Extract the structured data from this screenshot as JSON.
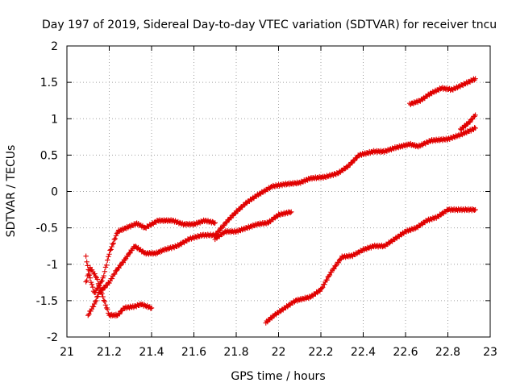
{
  "chart_data": {
    "type": "scatter",
    "title": "Day 197 of 2019, Sidereal Day-to-day VTEC variation (SDTVAR) for receiver tncu",
    "xlabel": "GPS time / hours",
    "ylabel": "SDTVAR / TECUs",
    "xlim": [
      21,
      23
    ],
    "ylim": [
      -2,
      2
    ],
    "xticks": [
      "21",
      "21.2",
      "21.4",
      "21.6",
      "21.8",
      "22",
      "22.2",
      "22.4",
      "22.6",
      "22.8",
      "23"
    ],
    "yticks": [
      "-2",
      "-1.5",
      "-1",
      "-0.5",
      "0",
      "0.5",
      "1",
      "1.5",
      "2"
    ],
    "grid": true,
    "marker": "plus",
    "marker_color": "#e00000",
    "series": [
      {
        "anchors": [
          [
            21.09,
            -1.25
          ],
          [
            21.11,
            -1.05
          ],
          [
            21.14,
            -1.18
          ],
          [
            21.17,
            -1.45
          ],
          [
            21.2,
            -1.7
          ],
          [
            21.24,
            -1.7
          ],
          [
            21.27,
            -1.6
          ],
          [
            21.32,
            -1.58
          ],
          [
            21.35,
            -1.55
          ],
          [
            21.4,
            -1.6
          ]
        ]
      },
      {
        "anchors": [
          [
            21.09,
            -0.9
          ],
          [
            21.11,
            -1.2
          ],
          [
            21.13,
            -1.4
          ],
          [
            21.17,
            -1.2
          ],
          [
            21.2,
            -0.85
          ],
          [
            21.24,
            -0.55
          ],
          [
            21.28,
            -0.5
          ],
          [
            21.33,
            -0.44
          ],
          [
            21.37,
            -0.5
          ],
          [
            21.43,
            -0.4
          ],
          [
            21.5,
            -0.4
          ],
          [
            21.55,
            -0.45
          ],
          [
            21.6,
            -0.45
          ],
          [
            21.65,
            -0.4
          ],
          [
            21.7,
            -0.43
          ]
        ]
      },
      {
        "anchors": [
          [
            21.1,
            -1.7
          ],
          [
            21.13,
            -1.55
          ],
          [
            21.15,
            -1.4
          ],
          [
            21.2,
            -1.25
          ],
          [
            21.23,
            -1.1
          ],
          [
            21.27,
            -0.95
          ],
          [
            21.32,
            -0.75
          ],
          [
            21.37,
            -0.85
          ],
          [
            21.42,
            -0.85
          ],
          [
            21.46,
            -0.8
          ],
          [
            21.52,
            -0.75
          ],
          [
            21.58,
            -0.65
          ],
          [
            21.64,
            -0.6
          ],
          [
            21.7,
            -0.6
          ],
          [
            21.76,
            -0.4
          ],
          [
            21.8,
            -0.28
          ],
          [
            21.85,
            -0.15
          ],
          [
            21.9,
            -0.05
          ],
          [
            21.97,
            0.07
          ],
          [
            22.03,
            0.1
          ],
          [
            22.1,
            0.12
          ],
          [
            22.15,
            0.18
          ],
          [
            22.22,
            0.2
          ],
          [
            22.28,
            0.25
          ],
          [
            22.33,
            0.35
          ],
          [
            22.38,
            0.5
          ],
          [
            22.45,
            0.55
          ],
          [
            22.5,
            0.55
          ],
          [
            22.55,
            0.6
          ],
          [
            22.62,
            0.65
          ],
          [
            22.66,
            0.62
          ],
          [
            22.72,
            0.7
          ],
          [
            22.8,
            0.72
          ],
          [
            22.86,
            0.78
          ],
          [
            22.93,
            0.87
          ]
        ]
      },
      {
        "anchors": [
          [
            21.7,
            -0.65
          ],
          [
            21.75,
            -0.55
          ],
          [
            21.8,
            -0.55
          ],
          [
            21.85,
            -0.5
          ],
          [
            21.9,
            -0.45
          ],
          [
            21.95,
            -0.43
          ],
          [
            22.0,
            -0.32
          ],
          [
            22.06,
            -0.28
          ]
        ]
      },
      {
        "anchors": [
          [
            21.94,
            -1.8
          ],
          [
            21.98,
            -1.7
          ],
          [
            22.03,
            -1.6
          ],
          [
            22.08,
            -1.5
          ],
          [
            22.15,
            -1.45
          ],
          [
            22.2,
            -1.35
          ],
          [
            22.25,
            -1.1
          ],
          [
            22.3,
            -0.9
          ],
          [
            22.35,
            -0.88
          ],
          [
            22.4,
            -0.8
          ],
          [
            22.45,
            -0.75
          ],
          [
            22.5,
            -0.75
          ],
          [
            22.55,
            -0.65
          ],
          [
            22.6,
            -0.55
          ],
          [
            22.65,
            -0.5
          ],
          [
            22.7,
            -0.4
          ],
          [
            22.75,
            -0.35
          ],
          [
            22.8,
            -0.25
          ],
          [
            22.85,
            -0.25
          ],
          [
            22.93,
            -0.25
          ]
        ]
      },
      {
        "anchors": [
          [
            22.62,
            1.2
          ],
          [
            22.67,
            1.25
          ],
          [
            22.72,
            1.35
          ],
          [
            22.77,
            1.42
          ],
          [
            22.82,
            1.4
          ],
          [
            22.88,
            1.48
          ],
          [
            22.93,
            1.55
          ]
        ]
      },
      {
        "anchors": [
          [
            22.86,
            0.85
          ],
          [
            22.9,
            0.95
          ],
          [
            22.93,
            1.05
          ]
        ]
      }
    ]
  }
}
